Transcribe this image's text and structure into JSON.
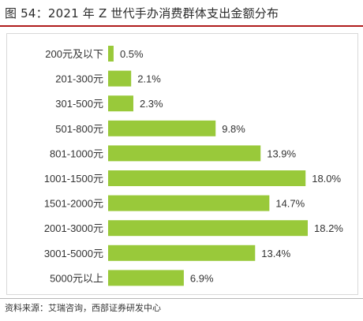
{
  "figure": {
    "title": "图 54：2021 年 Z 世代手办消费群体支出金额分布",
    "source": "资料来源：艾瑞咨询，西部证券研发中心"
  },
  "colors": {
    "bar": "#99c93a",
    "title_rule": "#b01c1c"
  },
  "chart_data": {
    "type": "bar",
    "orientation": "horizontal",
    "title": "",
    "xlabel": "",
    "ylabel": "",
    "unit": "%",
    "xlim": [
      0,
      18.2
    ],
    "grid": false,
    "legend": "none",
    "categories": [
      "200元及以下",
      "201-300元",
      "301-500元",
      "501-800元",
      "801-1000元",
      "1001-1500元",
      "1501-2000元",
      "2001-3000元",
      "3001-5000元",
      "5000元以上"
    ],
    "values": [
      0.5,
      2.1,
      2.3,
      9.8,
      13.9,
      18.0,
      14.7,
      18.2,
      13.4,
      6.9
    ],
    "value_labels": [
      "0.5%",
      "2.1%",
      "2.3%",
      "9.8%",
      "13.9%",
      "18.0%",
      "14.7%",
      "18.2%",
      "13.4%",
      "6.9%"
    ]
  }
}
